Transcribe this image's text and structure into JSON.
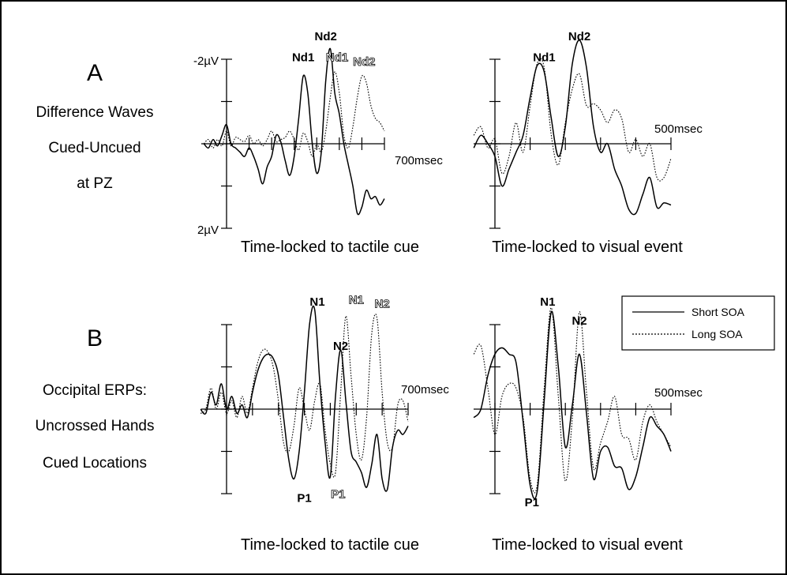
{
  "panels": {
    "A": {
      "letter": "A",
      "side_lines": [
        "Difference Waves",
        "Cued-Uncued",
        "at PZ"
      ],
      "y_top_label": "-2µV",
      "y_bottom_label": "2µV"
    },
    "B": {
      "letter": "B",
      "side_lines": [
        "Occipital ERPs:",
        "Uncrossed Hands",
        "Cued Locations"
      ]
    }
  },
  "chart_data": [
    {
      "id": "A-left",
      "type": "line",
      "title": "Time-locked to tactile cue",
      "x_end_label": "700msec",
      "xlim": [
        -100,
        700
      ],
      "x_ticks": [
        0,
        100,
        200,
        300,
        400,
        500,
        600,
        700
      ],
      "ylim": [
        2,
        -2
      ],
      "y_ticks": [
        -2,
        -1,
        0,
        1,
        2
      ],
      "peak_labels": [
        {
          "text": "Nd1",
          "series": "Short SOA",
          "x": 340,
          "y": -1.95
        },
        {
          "text": "Nd2",
          "series": "Short SOA",
          "x": 440,
          "y": -2.45
        },
        {
          "text": "Nd1",
          "series": "Long SOA",
          "x": 490,
          "y": -1.95
        },
        {
          "text": "Nd2",
          "series": "Long SOA",
          "x": 610,
          "y": -1.85
        }
      ],
      "series": [
        {
          "name": "Short SOA",
          "x": [
            -100,
            -80,
            -60,
            -40,
            -20,
            0,
            20,
            40,
            60,
            80,
            100,
            120,
            140,
            160,
            180,
            200,
            220,
            240,
            260,
            280,
            300,
            320,
            340,
            360,
            380,
            400,
            420,
            440,
            460,
            480,
            500,
            520,
            540,
            560,
            580,
            600,
            620,
            640,
            660,
            680,
            700
          ],
          "y": [
            0,
            0.1,
            -0.1,
            0.05,
            -0.2,
            -0.45,
            0.0,
            0.1,
            0.2,
            0.3,
            0.1,
            0.3,
            0.6,
            0.95,
            0.55,
            0.3,
            -0.2,
            -0.05,
            0.4,
            0.75,
            0.3,
            -0.6,
            -1.6,
            -1.2,
            0.0,
            0.7,
            0.2,
            -1.5,
            -2.25,
            -1.2,
            -0.7,
            0.0,
            0.5,
            1.0,
            1.65,
            1.5,
            1.1,
            1.3,
            1.25,
            1.45,
            1.3
          ]
        },
        {
          "name": "Long SOA",
          "x": [
            -100,
            -80,
            -60,
            -40,
            -20,
            0,
            20,
            40,
            60,
            80,
            100,
            120,
            140,
            160,
            180,
            200,
            220,
            240,
            260,
            280,
            300,
            320,
            340,
            360,
            380,
            400,
            420,
            440,
            460,
            480,
            500,
            520,
            540,
            560,
            580,
            600,
            620,
            640,
            660,
            680,
            700
          ],
          "y": [
            0,
            -0.1,
            0.1,
            -0.1,
            0.05,
            -0.3,
            0.05,
            -0.15,
            -0.1,
            -0.05,
            -0.2,
            0.0,
            -0.1,
            0.05,
            -0.1,
            -0.3,
            -0.05,
            -0.1,
            -0.15,
            -0.3,
            -0.1,
            0.15,
            -0.25,
            -0.05,
            0.3,
            0.0,
            0.2,
            -0.3,
            -1.1,
            -1.7,
            -1.2,
            -0.2,
            0.1,
            -0.4,
            -1.1,
            -1.6,
            -1.45,
            -0.9,
            -0.6,
            -0.5,
            -0.3
          ]
        }
      ]
    },
    {
      "id": "A-right",
      "type": "line",
      "title": "Time-locked to visual event",
      "x_end_label": "500msec",
      "xlim": [
        0,
        500
      ],
      "x_ticks": [
        0,
        100,
        200,
        300,
        400,
        500
      ],
      "ylim": [
        2,
        -2
      ],
      "y_ticks": [
        -2,
        -1,
        0,
        1,
        2
      ],
      "peak_labels": [
        {
          "text": "Nd1",
          "series": "Short SOA",
          "x": 140,
          "y": -1.95
        },
        {
          "text": "Nd2",
          "series": "Short SOA",
          "x": 240,
          "y": -2.45
        }
      ],
      "series": [
        {
          "name": "Short SOA",
          "x": [
            -60,
            -40,
            -20,
            0,
            20,
            40,
            60,
            80,
            100,
            120,
            140,
            160,
            180,
            200,
            220,
            240,
            260,
            280,
            300,
            320,
            340,
            360,
            380,
            400,
            420,
            440,
            460,
            480,
            500
          ],
          "y": [
            0.1,
            -0.2,
            0.0,
            0.3,
            1.0,
            0.6,
            0.2,
            -0.2,
            -1.1,
            -1.85,
            -1.7,
            -0.6,
            0.3,
            -0.4,
            -1.9,
            -2.45,
            -1.8,
            -0.4,
            0.2,
            0.0,
            0.6,
            1.0,
            1.55,
            1.65,
            1.2,
            0.8,
            1.5,
            1.4,
            1.45
          ]
        },
        {
          "name": "Long SOA",
          "x": [
            -60,
            -40,
            -20,
            0,
            20,
            40,
            60,
            80,
            100,
            120,
            140,
            160,
            180,
            200,
            220,
            240,
            260,
            280,
            300,
            320,
            340,
            360,
            380,
            400,
            420,
            440,
            460,
            480,
            500
          ],
          "y": [
            -0.2,
            -0.4,
            0.1,
            -0.1,
            0.7,
            0.3,
            -0.5,
            0.2,
            -0.9,
            -1.9,
            -1.8,
            -0.2,
            0.5,
            -0.5,
            -1.3,
            -1.65,
            -0.9,
            -0.95,
            -0.8,
            -0.5,
            -0.8,
            -0.6,
            0.2,
            -0.1,
            0.3,
            0.0,
            0.8,
            0.8,
            0.35
          ]
        }
      ]
    },
    {
      "id": "B-left",
      "type": "line",
      "title": "Time-locked to tactile cue",
      "x_end_label": "700msec",
      "xlim": [
        -100,
        700
      ],
      "x_ticks": [
        0,
        100,
        200,
        300,
        400,
        500,
        600,
        700
      ],
      "ylim": [
        2,
        -2
      ],
      "y_ticks": [
        -2,
        -1,
        0,
        1,
        2
      ],
      "peak_labels": [
        {
          "text": "N1",
          "series": "Short SOA",
          "x": 350,
          "y": -2.45
        },
        {
          "text": "N2",
          "series": "Short SOA",
          "x": 440,
          "y": -1.4
        },
        {
          "text": "P1",
          "series": "Short SOA",
          "x": 300,
          "y": 2.2
        },
        {
          "text": "N1",
          "series": "Long SOA",
          "x": 500,
          "y": -2.5
        },
        {
          "text": "N2",
          "series": "Long SOA",
          "x": 600,
          "y": -2.4
        },
        {
          "text": "P1",
          "series": "Long SOA",
          "x": 430,
          "y": 2.1
        }
      ],
      "series": [
        {
          "name": "Short SOA",
          "x": [
            -100,
            -80,
            -60,
            -40,
            -20,
            0,
            20,
            40,
            60,
            80,
            100,
            120,
            140,
            160,
            180,
            200,
            220,
            240,
            260,
            280,
            300,
            320,
            340,
            360,
            380,
            400,
            420,
            440,
            460,
            480,
            500,
            520,
            540,
            560,
            580,
            600,
            620,
            640,
            660,
            680,
            700
          ],
          "y": [
            0,
            0.1,
            -0.4,
            -0.1,
            -0.6,
            0.0,
            -0.3,
            0.1,
            -0.1,
            0.2,
            -0.4,
            -0.9,
            -1.2,
            -1.3,
            -1.2,
            -0.8,
            0.2,
            1.2,
            1.65,
            1.0,
            -0.4,
            -2.0,
            -2.35,
            -0.6,
            0.8,
            1.6,
            -0.3,
            -1.4,
            -0.2,
            1.0,
            1.25,
            1.5,
            1.85,
            1.3,
            0.6,
            1.65,
            1.9,
            0.9,
            0.5,
            0.6,
            0.4
          ]
        },
        {
          "name": "Long SOA",
          "x": [
            -100,
            -80,
            -60,
            -40,
            -20,
            0,
            20,
            40,
            60,
            80,
            100,
            120,
            140,
            160,
            180,
            200,
            220,
            240,
            260,
            280,
            300,
            320,
            340,
            360,
            380,
            400,
            420,
            440,
            460,
            480,
            500,
            520,
            540,
            560,
            580,
            600,
            620,
            640,
            660,
            680,
            700
          ],
          "y": [
            0.1,
            0.0,
            -0.5,
            0.0,
            -0.4,
            0.1,
            -0.2,
            0.2,
            -0.3,
            0.1,
            -0.5,
            -1.1,
            -1.4,
            -1.35,
            -1.0,
            -0.2,
            0.8,
            1.0,
            0.4,
            -0.5,
            0.0,
            0.5,
            -0.2,
            -0.6,
            0.5,
            1.3,
            1.5,
            -0.4,
            -2.2,
            -0.8,
            0.6,
            1.2,
            0.2,
            -1.8,
            -2.15,
            -0.4,
            0.8,
            0.9,
            -0.1,
            -0.2,
            0.3
          ]
        }
      ]
    },
    {
      "id": "B-right",
      "type": "line",
      "title": "Time-locked to visual event",
      "x_end_label": "500msec",
      "xlim": [
        0,
        500
      ],
      "x_ticks": [
        0,
        100,
        200,
        300,
        400,
        500
      ],
      "ylim": [
        2,
        -2
      ],
      "y_ticks": [
        -2,
        -1,
        0,
        1,
        2
      ],
      "peak_labels": [
        {
          "text": "N1",
          "series": "Short SOA",
          "x": 150,
          "y": -2.45
        },
        {
          "text": "N2",
          "series": "Short SOA",
          "x": 240,
          "y": -2.0
        },
        {
          "text": "P1",
          "series": "Short SOA",
          "x": 105,
          "y": 2.3
        }
      ],
      "series": [
        {
          "name": "Short SOA",
          "x": [
            -60,
            -40,
            -20,
            0,
            20,
            40,
            60,
            80,
            100,
            120,
            140,
            160,
            180,
            200,
            220,
            240,
            260,
            280,
            300,
            320,
            340,
            360,
            380,
            400,
            420,
            440,
            460,
            480,
            500
          ],
          "y": [
            0.2,
            0.0,
            -0.8,
            -1.3,
            -1.45,
            -1.3,
            -1.1,
            0.3,
            1.8,
            1.95,
            -0.2,
            -2.3,
            -1.0,
            0.9,
            -0.1,
            -1.3,
            0.1,
            1.65,
            1.0,
            0.9,
            1.35,
            1.4,
            1.9,
            1.6,
            0.9,
            0.2,
            0.4,
            0.6,
            1.0
          ]
        },
        {
          "name": "Long SOA",
          "x": [
            -60,
            -40,
            -20,
            0,
            20,
            40,
            60,
            80,
            100,
            120,
            140,
            160,
            180,
            200,
            220,
            240,
            260,
            280,
            300,
            320,
            340,
            360,
            380,
            400,
            420,
            440,
            460,
            480,
            500
          ],
          "y": [
            -1.3,
            -1.5,
            -0.5,
            0.6,
            -0.3,
            -0.6,
            -0.5,
            0.2,
            1.65,
            1.8,
            -0.5,
            -2.4,
            -0.3,
            1.7,
            0.2,
            -2.3,
            -0.4,
            1.4,
            0.8,
            0.3,
            -0.3,
            0.6,
            0.7,
            1.2,
            0.3,
            -0.1,
            0.3,
            0.6,
            0.9
          ]
        }
      ]
    }
  ],
  "legend": {
    "position": "top-right of panel B",
    "items": [
      {
        "label": "Short SOA",
        "style": "solid"
      },
      {
        "label": "Long SOA",
        "style": "dotted"
      }
    ]
  },
  "colors": {
    "ink": "#000000",
    "background": "#ffffff"
  }
}
